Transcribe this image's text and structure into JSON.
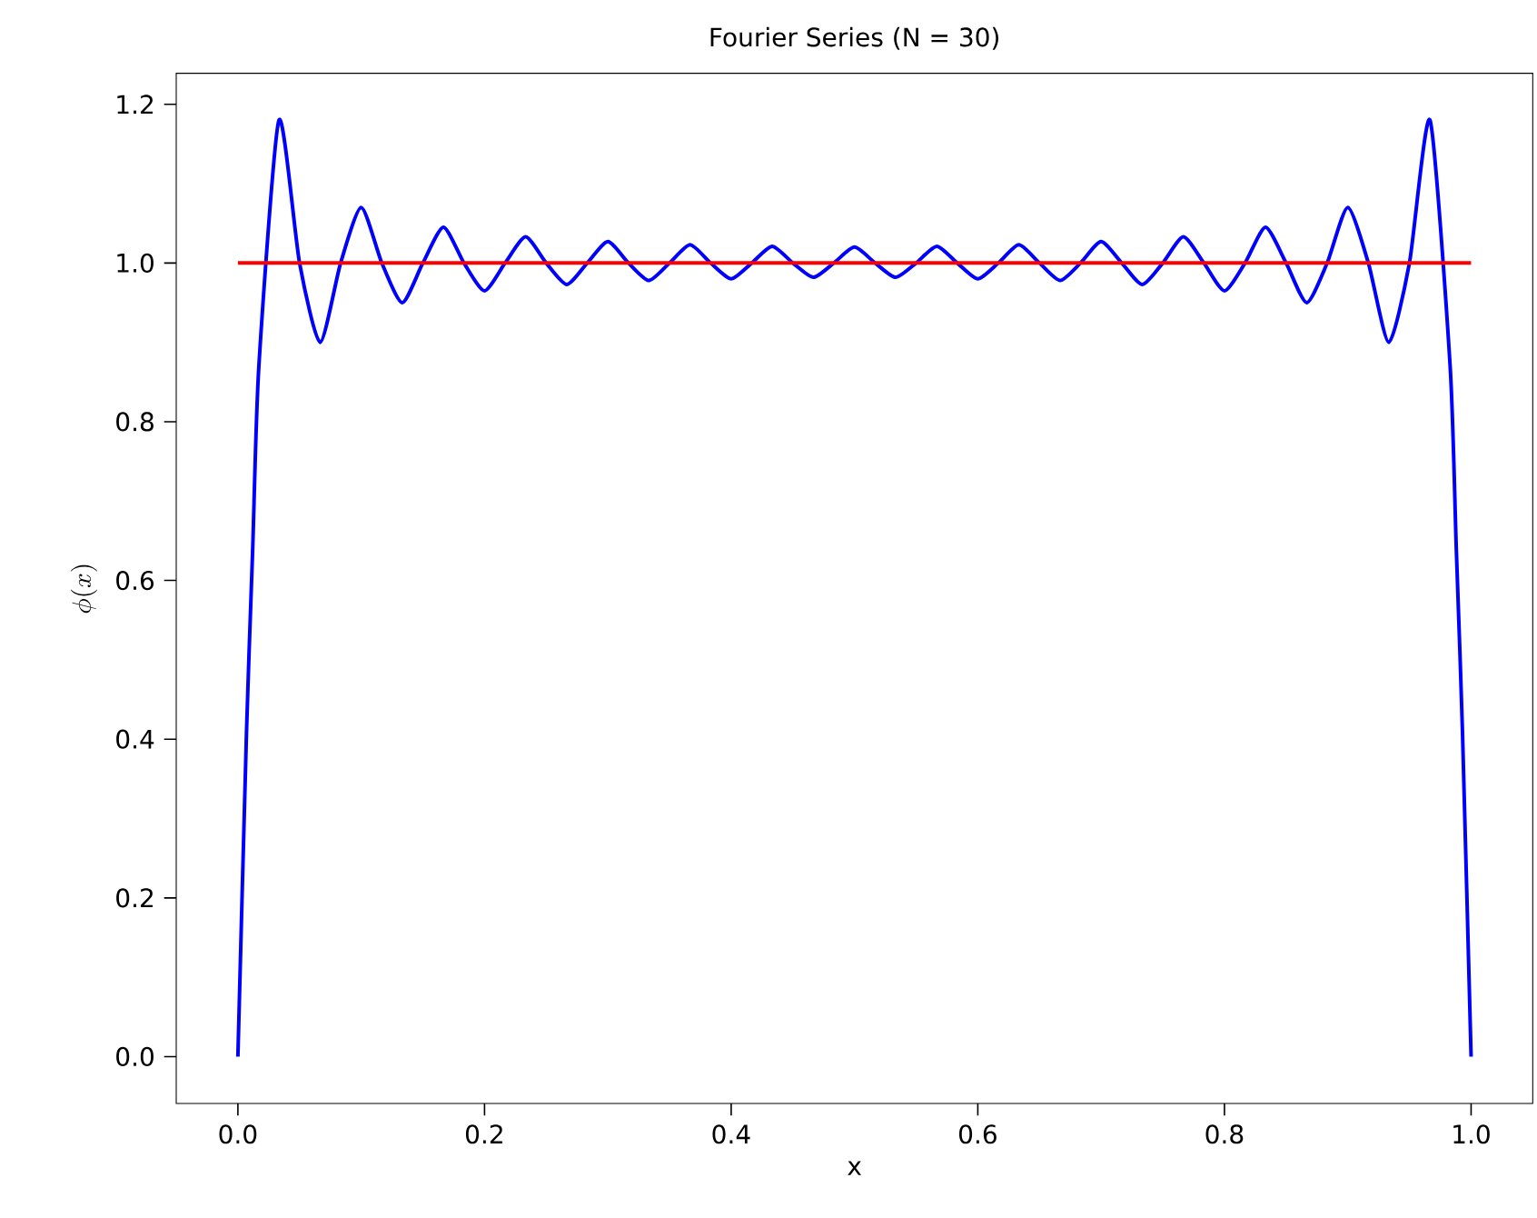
{
  "chart_data": {
    "type": "line",
    "title": "Fourier Series (N = 30)",
    "xlabel": "x",
    "ylabel": "\\phi(x)",
    "xlim": [
      -0.05,
      1.05
    ],
    "ylim": [
      -0.059,
      1.239
    ],
    "xticks": [
      {
        "value": 0,
        "label": "0.0"
      },
      0.2,
      0.4,
      0.6,
      0.8,
      {
        "value": 1,
        "label": "1.0"
      }
    ],
    "yticks": [
      {
        "value": 0,
        "label": "0.0"
      },
      0.2,
      0.4,
      0.6,
      0.8,
      {
        "value": 1,
        "label": "1.0"
      },
      1.2
    ],
    "marker": "none",
    "line_style": "solid",
    "series": [
      {
        "color": "#0000ff",
        "x": [
          0,
          0.007,
          0.012,
          0.017,
          0.0333,
          0.05,
          0.0667,
          0.0833,
          0.1,
          0.1167,
          0.1333,
          0.15,
          0.1667,
          0.1833,
          0.2,
          0.2167,
          0.2333,
          0.25,
          0.2667,
          0.2833,
          0.3,
          0.3167,
          0.3333,
          0.35,
          0.3667,
          0.3833,
          0.4,
          0.4167,
          0.4333,
          0.45,
          0.4667,
          0.4833,
          0.5,
          0.5167,
          0.5333,
          0.55,
          0.5667,
          0.5833,
          0.6,
          0.6167,
          0.6333,
          0.65,
          0.6667,
          0.6833,
          0.7,
          0.7167,
          0.7333,
          0.75,
          0.7667,
          0.7833,
          0.8,
          0.8167,
          0.8333,
          0.85,
          0.8667,
          0.8833,
          0.9,
          0.9167,
          0.9333,
          0.95,
          0.9667,
          0.983,
          0.988,
          0.993,
          1.0
        ],
        "values": [
          0,
          0.41,
          0.64,
          0.87,
          1.18,
          1.0,
          0.9,
          1.0,
          1.07,
          1.0,
          0.95,
          1.0,
          1.045,
          1.0,
          0.965,
          1.0,
          1.033,
          1.0,
          0.973,
          1.0,
          1.027,
          1.0,
          0.978,
          1.0,
          1.023,
          1.0,
          0.98,
          1.0,
          1.021,
          1.0,
          0.982,
          1.0,
          1.02,
          1.0,
          0.982,
          1.0,
          1.021,
          1.0,
          0.98,
          1.0,
          1.023,
          1.0,
          0.978,
          1.0,
          1.027,
          1.0,
          0.973,
          1.0,
          1.033,
          1.0,
          0.965,
          1.0,
          1.045,
          1.0,
          0.95,
          1.0,
          1.07,
          1.0,
          0.9,
          1.0,
          1.18,
          0.87,
          0.64,
          0.41,
          0
        ]
      },
      {
        "color": "#ff0000",
        "x": [
          0,
          1
        ],
        "values": [
          1.0,
          1.0
        ]
      }
    ]
  }
}
